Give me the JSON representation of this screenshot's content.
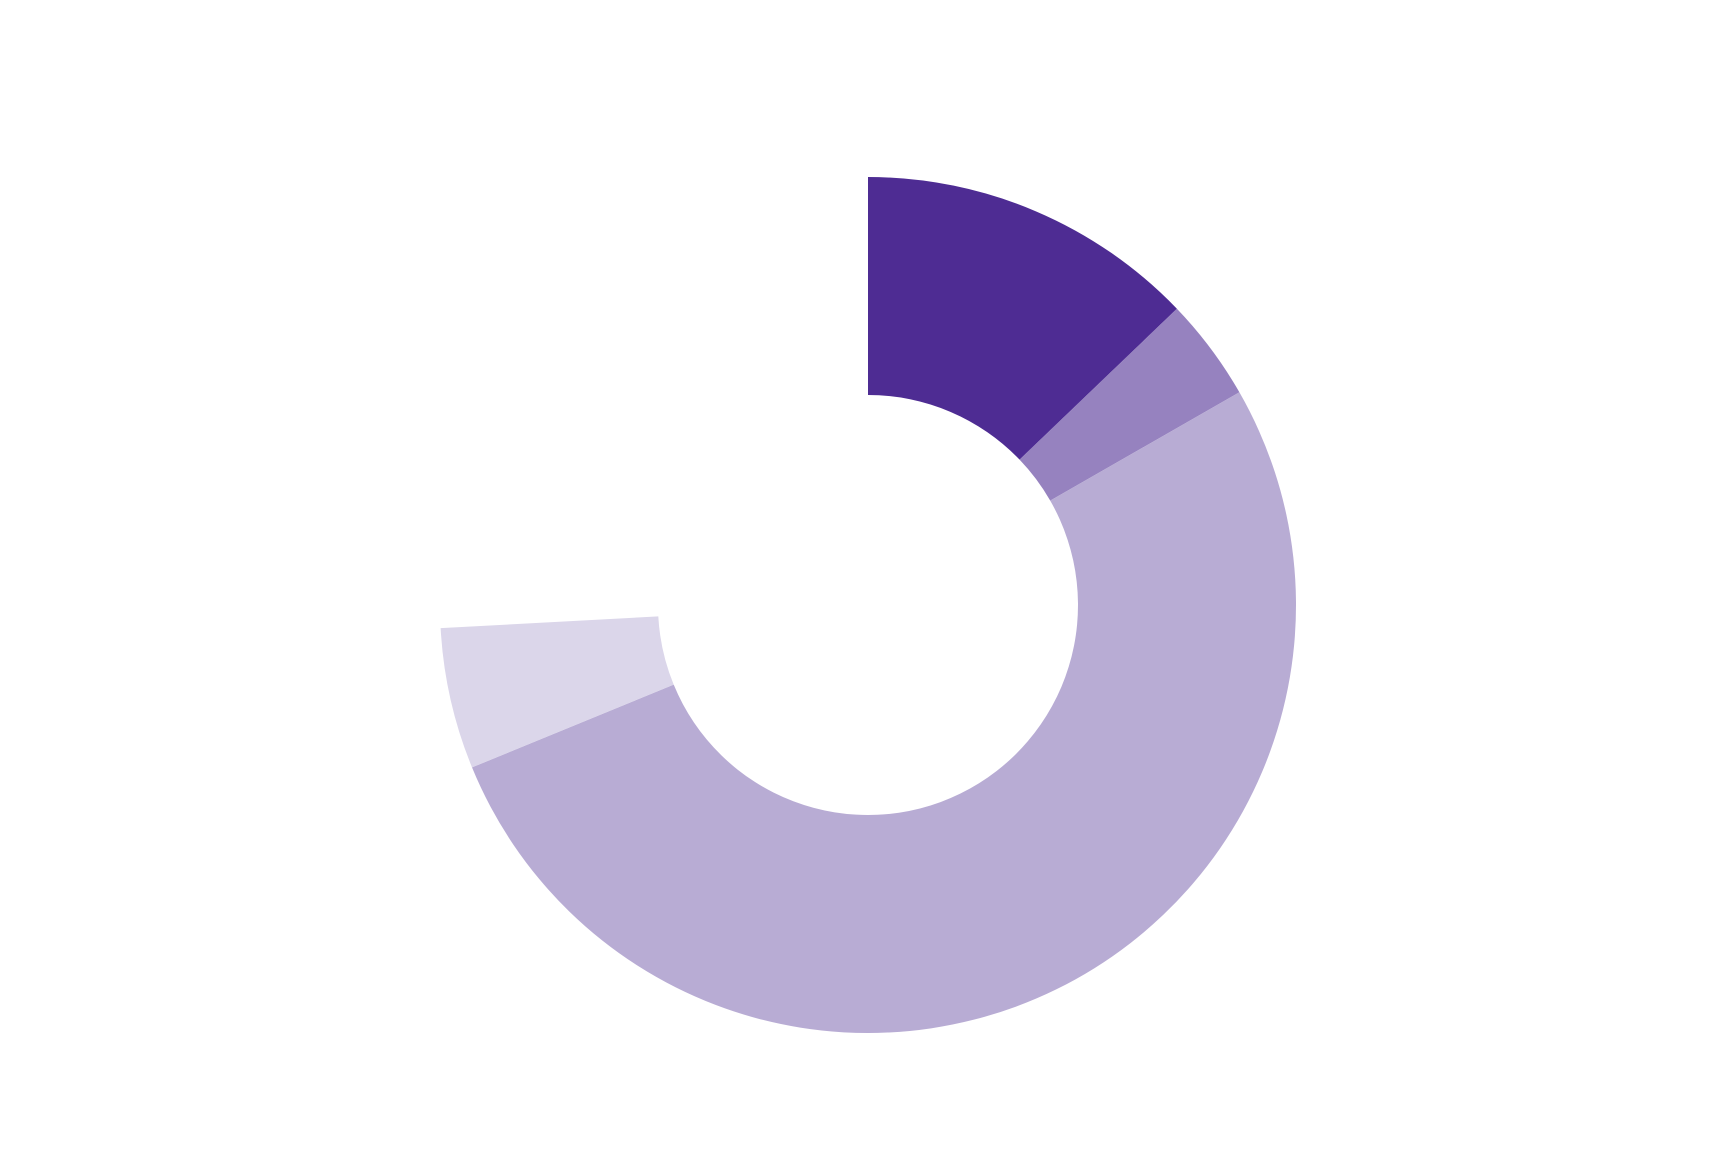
{
  "chart_data": {
    "type": "pie",
    "variant": "donut",
    "total_ring_degrees": 266.9,
    "start_angle_deg": 0,
    "direction": "clockwise",
    "series": [
      {
        "value": 46.2,
        "color": "#4e2c93"
      },
      {
        "value": 14.0,
        "color": "#9682bf"
      },
      {
        "value": 187.5,
        "color": "#b8acd4"
      },
      {
        "value": 19.2,
        "color": "#dbd6ea"
      }
    ]
  }
}
